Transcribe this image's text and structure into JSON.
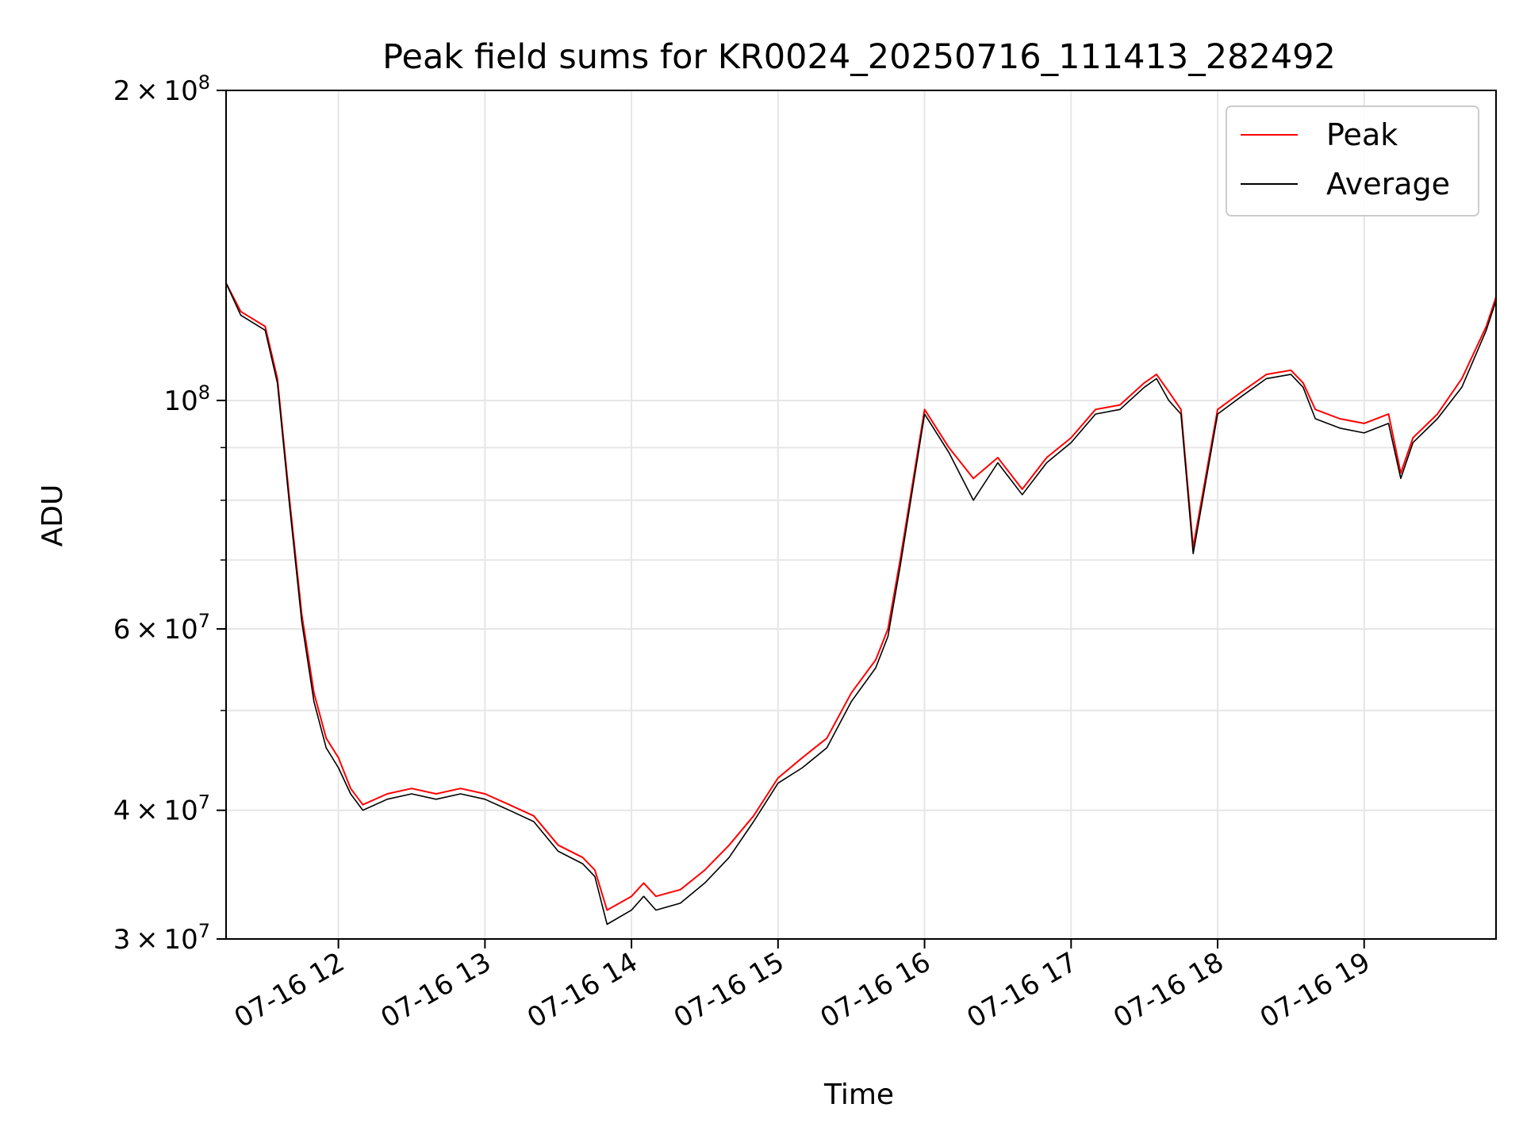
{
  "chart_data": {
    "type": "line",
    "title": "Peak field sums for KR0024_20250716_111413_282492",
    "xlabel": "Time",
    "ylabel": "ADU",
    "yscale": "log",
    "ylim": [
      30000000,
      200000000
    ],
    "xlim": [
      "2025-07-16 11:14",
      "2025-07-16 19:54"
    ],
    "grid": true,
    "legend_position": "top-right",
    "x_ticks": [
      {
        "t": "2025-07-16 12:00",
        "label": "07-16 12"
      },
      {
        "t": "2025-07-16 13:00",
        "label": "07-16 13"
      },
      {
        "t": "2025-07-16 14:00",
        "label": "07-16 14"
      },
      {
        "t": "2025-07-16 15:00",
        "label": "07-16 15"
      },
      {
        "t": "2025-07-16 16:00",
        "label": "07-16 16"
      },
      {
        "t": "2025-07-16 17:00",
        "label": "07-16 17"
      },
      {
        "t": "2025-07-16 18:00",
        "label": "07-16 18"
      },
      {
        "t": "2025-07-16 19:00",
        "label": "07-16 19"
      }
    ],
    "y_ticks": [
      {
        "value": 30000000,
        "base": "3",
        "exp": "7"
      },
      {
        "value": 40000000,
        "base": "4",
        "exp": "7"
      },
      {
        "value": 60000000,
        "base": "6",
        "exp": "7"
      },
      {
        "value": 100000000,
        "base": "",
        "exp": "8"
      },
      {
        "value": 200000000,
        "base": "2",
        "exp": "8"
      }
    ],
    "y_minor_ticks": [
      50000000,
      70000000,
      80000000,
      90000000
    ],
    "series": [
      {
        "name": "Peak",
        "color": "#ff0000",
        "x": [
          "2025-07-16 11:14",
          "2025-07-16 11:20",
          "2025-07-16 11:30",
          "2025-07-16 11:35",
          "2025-07-16 11:40",
          "2025-07-16 11:45",
          "2025-07-16 11:50",
          "2025-07-16 11:55",
          "2025-07-16 12:00",
          "2025-07-16 12:05",
          "2025-07-16 12:10",
          "2025-07-16 12:20",
          "2025-07-16 12:30",
          "2025-07-16 12:40",
          "2025-07-16 12:50",
          "2025-07-16 13:00",
          "2025-07-16 13:10",
          "2025-07-16 13:20",
          "2025-07-16 13:30",
          "2025-07-16 13:40",
          "2025-07-16 13:45",
          "2025-07-16 13:50",
          "2025-07-16 14:00",
          "2025-07-16 14:05",
          "2025-07-16 14:10",
          "2025-07-16 14:20",
          "2025-07-16 14:30",
          "2025-07-16 14:40",
          "2025-07-16 14:50",
          "2025-07-16 15:00",
          "2025-07-16 15:10",
          "2025-07-16 15:20",
          "2025-07-16 15:30",
          "2025-07-16 15:40",
          "2025-07-16 15:45",
          "2025-07-16 15:50",
          "2025-07-16 16:00",
          "2025-07-16 16:10",
          "2025-07-16 16:20",
          "2025-07-16 16:30",
          "2025-07-16 16:40",
          "2025-07-16 16:50",
          "2025-07-16 17:00",
          "2025-07-16 17:10",
          "2025-07-16 17:20",
          "2025-07-16 17:30",
          "2025-07-16 17:35",
          "2025-07-16 17:40",
          "2025-07-16 17:45",
          "2025-07-16 17:50",
          "2025-07-16 18:00",
          "2025-07-16 18:10",
          "2025-07-16 18:20",
          "2025-07-16 18:30",
          "2025-07-16 18:35",
          "2025-07-16 18:40",
          "2025-07-16 18:50",
          "2025-07-16 19:00",
          "2025-07-16 19:10",
          "2025-07-16 19:15",
          "2025-07-16 19:20",
          "2025-07-16 19:30",
          "2025-07-16 19:40",
          "2025-07-16 19:50",
          "2025-07-16 19:54"
        ],
        "values": [
          130000000,
          122000000,
          118000000,
          105000000,
          80000000,
          62000000,
          52000000,
          47000000,
          45000000,
          42000000,
          40500000,
          41500000,
          42000000,
          41500000,
          42000000,
          41500000,
          40500000,
          39500000,
          37000000,
          36000000,
          35000000,
          32000000,
          33000000,
          34000000,
          33000000,
          33500000,
          35000000,
          37000000,
          39500000,
          43000000,
          45000000,
          47000000,
          52000000,
          56000000,
          60000000,
          70000000,
          98000000,
          90000000,
          84000000,
          88000000,
          82000000,
          88000000,
          92000000,
          98000000,
          99000000,
          104000000,
          106000000,
          102000000,
          98000000,
          72000000,
          98000000,
          102000000,
          106000000,
          107000000,
          104000000,
          98000000,
          96000000,
          95000000,
          97000000,
          85000000,
          92000000,
          97000000,
          105000000,
          118000000,
          126000000
        ]
      },
      {
        "name": "Average",
        "color": "#000000",
        "x": [
          "2025-07-16 11:14",
          "2025-07-16 11:20",
          "2025-07-16 11:30",
          "2025-07-16 11:35",
          "2025-07-16 11:40",
          "2025-07-16 11:45",
          "2025-07-16 11:50",
          "2025-07-16 11:55",
          "2025-07-16 12:00",
          "2025-07-16 12:05",
          "2025-07-16 12:10",
          "2025-07-16 12:20",
          "2025-07-16 12:30",
          "2025-07-16 12:40",
          "2025-07-16 12:50",
          "2025-07-16 13:00",
          "2025-07-16 13:10",
          "2025-07-16 13:20",
          "2025-07-16 13:30",
          "2025-07-16 13:40",
          "2025-07-16 13:45",
          "2025-07-16 13:50",
          "2025-07-16 14:00",
          "2025-07-16 14:05",
          "2025-07-16 14:10",
          "2025-07-16 14:20",
          "2025-07-16 14:30",
          "2025-07-16 14:40",
          "2025-07-16 14:50",
          "2025-07-16 15:00",
          "2025-07-16 15:10",
          "2025-07-16 15:20",
          "2025-07-16 15:30",
          "2025-07-16 15:40",
          "2025-07-16 15:45",
          "2025-07-16 15:50",
          "2025-07-16 16:00",
          "2025-07-16 16:10",
          "2025-07-16 16:20",
          "2025-07-16 16:30",
          "2025-07-16 16:40",
          "2025-07-16 16:50",
          "2025-07-16 17:00",
          "2025-07-16 17:10",
          "2025-07-16 17:20",
          "2025-07-16 17:30",
          "2025-07-16 17:35",
          "2025-07-16 17:40",
          "2025-07-16 17:45",
          "2025-07-16 17:50",
          "2025-07-16 18:00",
          "2025-07-16 18:10",
          "2025-07-16 18:20",
          "2025-07-16 18:30",
          "2025-07-16 18:35",
          "2025-07-16 18:40",
          "2025-07-16 18:50",
          "2025-07-16 19:00",
          "2025-07-16 19:10",
          "2025-07-16 19:15",
          "2025-07-16 19:20",
          "2025-07-16 19:30",
          "2025-07-16 19:40",
          "2025-07-16 19:50",
          "2025-07-16 19:54"
        ],
        "values": [
          130000000,
          121000000,
          117000000,
          104000000,
          79000000,
          61000000,
          51000000,
          46000000,
          44000000,
          41500000,
          40000000,
          41000000,
          41500000,
          41000000,
          41500000,
          41000000,
          40000000,
          39000000,
          36500000,
          35500000,
          34500000,
          31000000,
          32000000,
          33000000,
          32000000,
          32500000,
          34000000,
          36000000,
          39000000,
          42500000,
          44000000,
          46000000,
          51000000,
          55000000,
          59000000,
          69000000,
          97000000,
          89000000,
          80000000,
          87000000,
          81000000,
          87000000,
          91000000,
          97000000,
          98000000,
          103000000,
          105000000,
          100000000,
          97000000,
          71000000,
          97000000,
          101000000,
          105000000,
          106000000,
          103000000,
          96000000,
          94000000,
          93000000,
          95000000,
          84000000,
          91000000,
          96000000,
          103000000,
          117000000,
          125000000
        ]
      }
    ]
  }
}
